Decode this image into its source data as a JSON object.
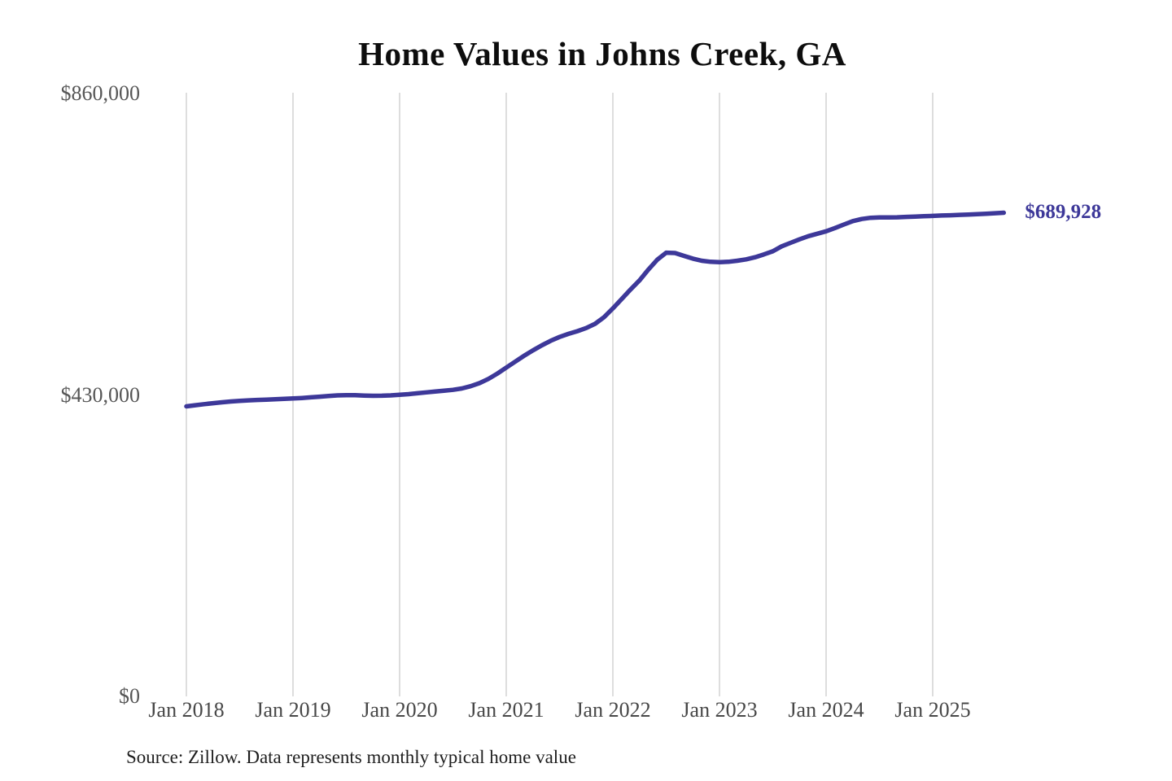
{
  "chart_data": {
    "type": "line",
    "title": "Home Values in Johns Creek, GA",
    "source_note": "Source: Zillow. Data represents monthly typical home value",
    "series_name": "Monthly typical home value",
    "end_label": "$689,928",
    "last_value": 689928,
    "ylim": [
      0,
      860000
    ],
    "grid": "vertical-only",
    "legend": "none",
    "line_color": "#3d3899",
    "grid_color": "#cbcbcb",
    "x": [
      "2018-01",
      "2018-02",
      "2018-03",
      "2018-04",
      "2018-05",
      "2018-06",
      "2018-07",
      "2018-08",
      "2018-09",
      "2018-10",
      "2018-11",
      "2018-12",
      "2019-01",
      "2019-02",
      "2019-03",
      "2019-04",
      "2019-05",
      "2019-06",
      "2019-07",
      "2019-08",
      "2019-09",
      "2019-10",
      "2019-11",
      "2019-12",
      "2020-01",
      "2020-02",
      "2020-03",
      "2020-04",
      "2020-05",
      "2020-06",
      "2020-07",
      "2020-08",
      "2020-09",
      "2020-10",
      "2020-11",
      "2020-12",
      "2021-01",
      "2021-02",
      "2021-03",
      "2021-04",
      "2021-05",
      "2021-06",
      "2021-07",
      "2021-08",
      "2021-09",
      "2021-10",
      "2021-11",
      "2021-12",
      "2022-01",
      "2022-02",
      "2022-03",
      "2022-04",
      "2022-05",
      "2022-06",
      "2022-07",
      "2022-08",
      "2022-09",
      "2022-10",
      "2022-11",
      "2022-12",
      "2023-01",
      "2023-02",
      "2023-03",
      "2023-04",
      "2023-05",
      "2023-06",
      "2023-07",
      "2023-08",
      "2023-09",
      "2023-10",
      "2023-11",
      "2023-12",
      "2024-01",
      "2024-02",
      "2024-03",
      "2024-04",
      "2024-05",
      "2024-06",
      "2024-07",
      "2024-08",
      "2024-09",
      "2024-10",
      "2024-11",
      "2024-12",
      "2025-01",
      "2025-02",
      "2025-03",
      "2025-04",
      "2025-05",
      "2025-06",
      "2025-07",
      "2025-08",
      "2025-09"
    ],
    "values": [
      413800,
      415400,
      416900,
      418300,
      419600,
      420700,
      421600,
      422300,
      422900,
      423400,
      423900,
      424400,
      425000,
      425700,
      426600,
      427600,
      428600,
      429400,
      429800,
      429700,
      429200,
      428800,
      428900,
      429400,
      430200,
      431200,
      432400,
      433700,
      434900,
      436000,
      437300,
      439300,
      442500,
      447000,
      453000,
      460500,
      469000,
      477500,
      485800,
      493600,
      500800,
      507300,
      512800,
      517200,
      521000,
      525500,
      531500,
      541000,
      553500,
      567000,
      580500,
      593500,
      609000,
      623000,
      633000,
      632500,
      628500,
      624500,
      621500,
      620000,
      619500,
      620000,
      621500,
      623500,
      626500,
      630500,
      635000,
      642000,
      647000,
      652000,
      656500,
      660000,
      663500,
      668200,
      673200,
      678000,
      681000,
      682800,
      683400,
      683400,
      683500,
      684000,
      684500,
      685000,
      685500,
      686000,
      686400,
      686900,
      687400,
      688000,
      688600,
      689300,
      689928
    ],
    "y_ticks": [
      {
        "value": 0,
        "label": "$0"
      },
      {
        "value": 430000,
        "label": "$430,000"
      },
      {
        "value": 860000,
        "label": "$860,000"
      }
    ],
    "x_ticks": [
      {
        "month": "2018-01",
        "label": "Jan 2018"
      },
      {
        "month": "2019-01",
        "label": "Jan 2019"
      },
      {
        "month": "2020-01",
        "label": "Jan 2020"
      },
      {
        "month": "2021-01",
        "label": "Jan 2021"
      },
      {
        "month": "2022-01",
        "label": "Jan 2022"
      },
      {
        "month": "2023-01",
        "label": "Jan 2023"
      },
      {
        "month": "2024-01",
        "label": "Jan 2024"
      },
      {
        "month": "2025-01",
        "label": "Jan 2025"
      }
    ]
  },
  "colors": {
    "background": "#ffffff",
    "title": "#0d0d0d",
    "y_tick": "#565656",
    "x_tick": "#474747",
    "source": "#1e1e1e",
    "line": "#3d3899",
    "grid": "#cbcbcb",
    "annotation": "#3d3899"
  }
}
